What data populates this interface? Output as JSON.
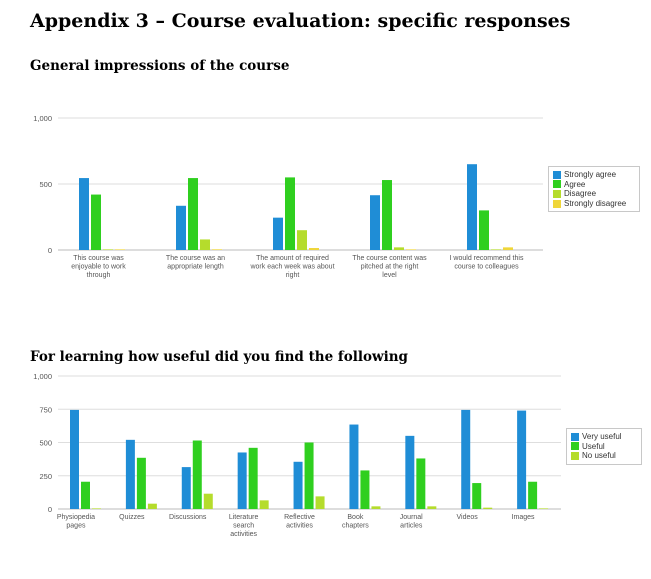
{
  "page_title": "Appendix 3 – Course evaluation: specific responses",
  "section1": {
    "heading": "General impressions of the course"
  },
  "section2": {
    "heading": "For learning how useful did you find the following"
  },
  "colors": {
    "strongly_agree": "#1f8dd6",
    "agree": "#2fcf1f",
    "disagree": "#b5dc2c",
    "strongly_disagree": "#efd63a",
    "very_useful": "#1f8dd6",
    "useful": "#2fcf1f",
    "no_useful": "#b5dc2c"
  },
  "chart_data": [
    {
      "type": "bar",
      "categories": [
        "This course was enjoyable to work through",
        "The course was an appropriate length",
        "The amount of required work each week was about right",
        "The course content was pitched at the right level",
        "I would recommend this course to colleagues"
      ],
      "series": [
        {
          "name": "Strongly agree",
          "values": [
            545,
            335,
            245,
            415,
            650
          ]
        },
        {
          "name": "Agree",
          "values": [
            420,
            545,
            550,
            530,
            300
          ]
        },
        {
          "name": "Disagree",
          "values": [
            0,
            80,
            150,
            20,
            0
          ]
        },
        {
          "name": "Strongly disagree",
          "values": [
            0,
            5,
            15,
            0,
            20
          ]
        }
      ],
      "yticks": [
        "1,000",
        "500",
        "0"
      ],
      "ylim": [
        0,
        1000
      ],
      "legend": "right",
      "grid": true
    },
    {
      "type": "bar",
      "categories": [
        "Physiopedia pages",
        "Quizzes",
        "Discussions",
        "Literature search activities",
        "Reflective activities",
        "Book chapters",
        "Journal articles",
        "Videos",
        "Images"
      ],
      "series": [
        {
          "name": "Very useful",
          "values": [
            745,
            520,
            315,
            425,
            355,
            635,
            550,
            745,
            740
          ]
        },
        {
          "name": "Useful",
          "values": [
            205,
            385,
            515,
            460,
            500,
            290,
            380,
            195,
            205
          ]
        },
        {
          "name": "No useful",
          "values": [
            0,
            40,
            115,
            65,
            95,
            20,
            20,
            10,
            0
          ]
        }
      ],
      "yticks": [
        "1,000",
        "750",
        "500",
        "250",
        "0"
      ],
      "ylim": [
        0,
        1000
      ],
      "legend": "right",
      "grid": true
    }
  ]
}
